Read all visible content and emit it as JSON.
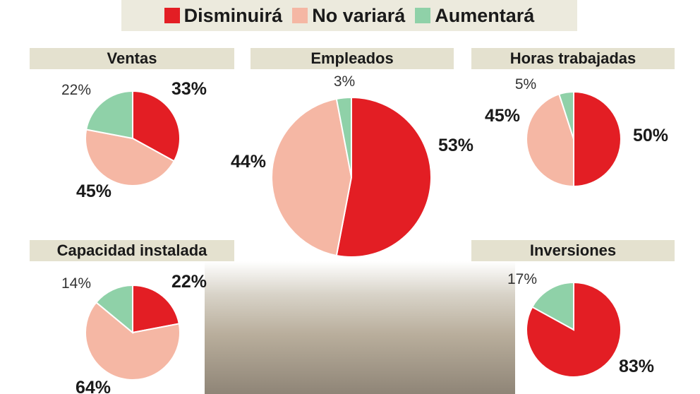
{
  "legend": [
    {
      "label": "Disminuirá",
      "color": "#e31e24"
    },
    {
      "label": "No variará",
      "color": "#f5b7a4"
    },
    {
      "label": "Aumentará",
      "color": "#8fd1a8"
    }
  ],
  "chart_data": [
    {
      "type": "pie",
      "title": "Ventas",
      "slices": [
        {
          "label": "Disminuirá",
          "value": 33,
          "text": "33%"
        },
        {
          "label": "No variará",
          "value": 45,
          "text": "45%"
        },
        {
          "label": "Aumentará",
          "value": 22,
          "text": "22%"
        }
      ]
    },
    {
      "type": "pie",
      "title": "Empleados",
      "slices": [
        {
          "label": "Disminuirá",
          "value": 53,
          "text": "53%"
        },
        {
          "label": "No variará",
          "value": 44,
          "text": "44%"
        },
        {
          "label": "Aumentará",
          "value": 3,
          "text": "3%"
        }
      ]
    },
    {
      "type": "pie",
      "title": "Horas trabajadas",
      "slices": [
        {
          "label": "Disminuirá",
          "value": 50,
          "text": "50%"
        },
        {
          "label": "No variará",
          "value": 45,
          "text": "45%"
        },
        {
          "label": "Aumentará",
          "value": 5,
          "text": "5%"
        }
      ]
    },
    {
      "type": "pie",
      "title": "Capacidad instalada",
      "slices": [
        {
          "label": "Disminuirá",
          "value": 22,
          "text": "22%"
        },
        {
          "label": "No variará",
          "value": 64,
          "text": "64%"
        },
        {
          "label": "Aumentará",
          "value": 14,
          "text": "14%"
        }
      ]
    },
    {
      "type": "pie",
      "title": "Inversiones",
      "slices": [
        {
          "label": "Disminuirá",
          "value": 83,
          "text": "83%"
        },
        {
          "label": "Aumentará",
          "value": 17,
          "text": "17%"
        }
      ]
    }
  ]
}
